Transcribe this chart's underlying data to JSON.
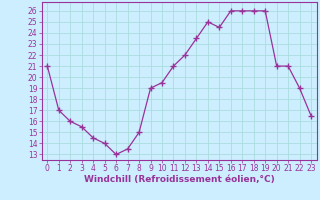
{
  "x": [
    0,
    1,
    2,
    3,
    4,
    5,
    6,
    7,
    8,
    9,
    10,
    11,
    12,
    13,
    14,
    15,
    16,
    17,
    18,
    19,
    20,
    21,
    22,
    23
  ],
  "y": [
    21,
    17,
    16,
    15.5,
    14.5,
    14,
    13,
    13.5,
    15,
    19,
    19.5,
    21,
    22,
    23.5,
    25,
    24.5,
    26,
    26,
    26,
    26,
    21,
    21,
    19,
    16.5
  ],
  "line_color": "#993399",
  "marker": "o",
  "marker_size": 2,
  "bg_color": "#cceeff",
  "grid_color": "#aadddd",
  "xlabel": "Windchill (Refroidissement éolien,°C)",
  "ylim": [
    12.5,
    26.8
  ],
  "xlim": [
    -0.5,
    23.5
  ],
  "yticks": [
    13,
    14,
    15,
    16,
    17,
    18,
    19,
    20,
    21,
    22,
    23,
    24,
    25,
    26
  ],
  "xticks": [
    0,
    1,
    2,
    3,
    4,
    5,
    6,
    7,
    8,
    9,
    10,
    11,
    12,
    13,
    14,
    15,
    16,
    17,
    18,
    19,
    20,
    21,
    22,
    23
  ],
  "tick_fontsize": 5.5,
  "xlabel_fontsize": 6.5
}
